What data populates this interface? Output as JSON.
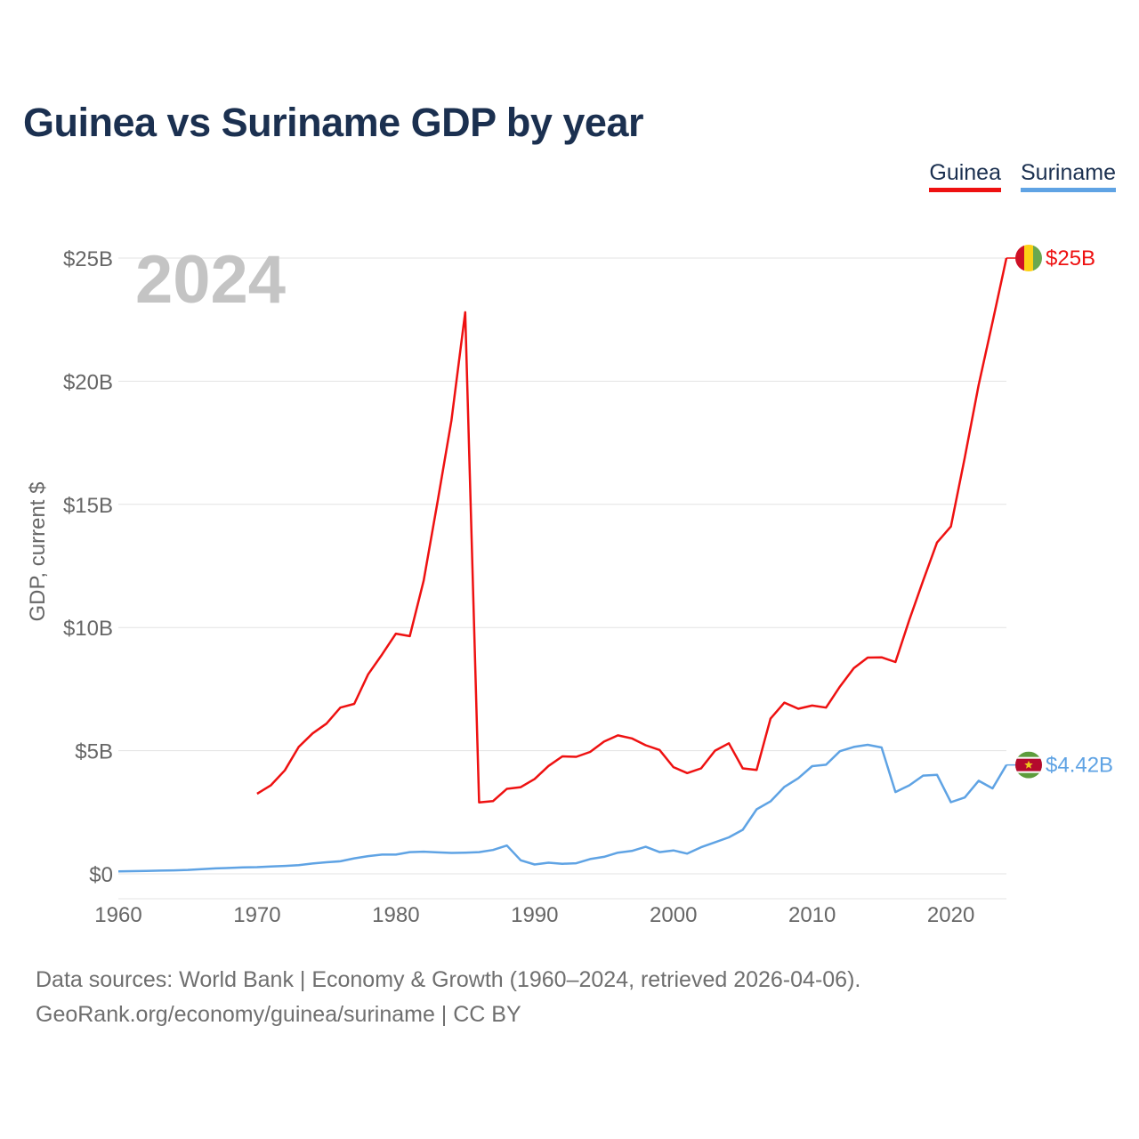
{
  "page": {
    "title": "Guinea vs Suriname GDP by year",
    "footer_line1": "Data sources: World Bank | Economy & Growth (1960–2024, retrieved 2026-04-06).",
    "footer_line2": "GeoRank.org/economy/guinea/suriname | CC BY"
  },
  "chart_data": {
    "type": "line",
    "title": "Guinea vs Suriname GDP by year",
    "ylabel": "GDP, current $",
    "xlabel": "",
    "year_label": "2024",
    "x_ticks": [
      1960,
      1970,
      1980,
      1990,
      2000,
      2010,
      2020
    ],
    "x_tick_labels": [
      "1960",
      "1970",
      "1980",
      "1990",
      "2000",
      "2010",
      "2020"
    ],
    "xlim": [
      1960,
      2024
    ],
    "y_ticks": [
      0,
      5,
      10,
      15,
      20,
      25
    ],
    "y_tick_labels": [
      "$0",
      "$5B",
      "$10B",
      "$15B",
      "$20B",
      "$25B"
    ],
    "ylim": [
      -1,
      25
    ],
    "units": "billions USD",
    "legend_position": "top-right",
    "series": [
      {
        "name": "Guinea",
        "color": "#ee1111",
        "flag": "guinea-flag",
        "end_label": "$25B",
        "points": [
          [
            1970,
            3.25
          ],
          [
            1971,
            3.6
          ],
          [
            1972,
            4.2
          ],
          [
            1973,
            5.15
          ],
          [
            1974,
            5.7
          ],
          [
            1975,
            6.1
          ],
          [
            1976,
            6.75
          ],
          [
            1977,
            6.9
          ],
          [
            1978,
            8.1
          ],
          [
            1979,
            8.9
          ],
          [
            1980,
            9.75
          ],
          [
            1981,
            9.65
          ],
          [
            1982,
            11.9
          ],
          [
            1983,
            15.1
          ],
          [
            1984,
            18.4
          ],
          [
            1985,
            22.8
          ],
          [
            1986,
            2.9
          ],
          [
            1987,
            2.95
          ],
          [
            1988,
            3.45
          ],
          [
            1989,
            3.52
          ],
          [
            1990,
            3.85
          ],
          [
            1991,
            4.38
          ],
          [
            1992,
            4.77
          ],
          [
            1993,
            4.75
          ],
          [
            1994,
            4.95
          ],
          [
            1995,
            5.37
          ],
          [
            1996,
            5.62
          ],
          [
            1997,
            5.5
          ],
          [
            1998,
            5.22
          ],
          [
            1999,
            5.03
          ],
          [
            2000,
            4.33
          ],
          [
            2001,
            4.09
          ],
          [
            2002,
            4.28
          ],
          [
            2003,
            5.0
          ],
          [
            2004,
            5.3
          ],
          [
            2005,
            4.28
          ],
          [
            2006,
            4.22
          ],
          [
            2007,
            6.3
          ],
          [
            2008,
            6.95
          ],
          [
            2009,
            6.7
          ],
          [
            2010,
            6.83
          ],
          [
            2011,
            6.75
          ],
          [
            2012,
            7.6
          ],
          [
            2013,
            8.35
          ],
          [
            2014,
            8.78
          ],
          [
            2015,
            8.79
          ],
          [
            2016,
            8.6
          ],
          [
            2017,
            10.3
          ],
          [
            2018,
            11.9
          ],
          [
            2019,
            13.45
          ],
          [
            2020,
            14.1
          ],
          [
            2021,
            16.9
          ],
          [
            2022,
            19.85
          ],
          [
            2023,
            22.4
          ],
          [
            2024,
            25.0
          ]
        ]
      },
      {
        "name": "Suriname",
        "color": "#5fa3e4",
        "flag": "suriname-flag",
        "end_label": "$4.42B",
        "points": [
          [
            1960,
            0.1
          ],
          [
            1961,
            0.11
          ],
          [
            1962,
            0.12
          ],
          [
            1963,
            0.13
          ],
          [
            1964,
            0.14
          ],
          [
            1965,
            0.16
          ],
          [
            1966,
            0.19
          ],
          [
            1967,
            0.22
          ],
          [
            1968,
            0.24
          ],
          [
            1969,
            0.26
          ],
          [
            1970,
            0.27
          ],
          [
            1971,
            0.3
          ],
          [
            1972,
            0.32
          ],
          [
            1973,
            0.35
          ],
          [
            1974,
            0.42
          ],
          [
            1975,
            0.47
          ],
          [
            1976,
            0.51
          ],
          [
            1977,
            0.63
          ],
          [
            1978,
            0.72
          ],
          [
            1979,
            0.78
          ],
          [
            1980,
            0.78
          ],
          [
            1981,
            0.88
          ],
          [
            1982,
            0.9
          ],
          [
            1983,
            0.87
          ],
          [
            1984,
            0.85
          ],
          [
            1985,
            0.86
          ],
          [
            1986,
            0.88
          ],
          [
            1987,
            0.97
          ],
          [
            1988,
            1.15
          ],
          [
            1989,
            0.55
          ],
          [
            1990,
            0.38
          ],
          [
            1991,
            0.45
          ],
          [
            1992,
            0.41
          ],
          [
            1993,
            0.43
          ],
          [
            1994,
            0.6
          ],
          [
            1995,
            0.69
          ],
          [
            1996,
            0.86
          ],
          [
            1997,
            0.93
          ],
          [
            1998,
            1.1
          ],
          [
            1999,
            0.88
          ],
          [
            2000,
            0.95
          ],
          [
            2001,
            0.82
          ],
          [
            2002,
            1.08
          ],
          [
            2003,
            1.28
          ],
          [
            2004,
            1.48
          ],
          [
            2005,
            1.79
          ],
          [
            2006,
            2.62
          ],
          [
            2007,
            2.94
          ],
          [
            2008,
            3.53
          ],
          [
            2009,
            3.88
          ],
          [
            2010,
            4.37
          ],
          [
            2011,
            4.43
          ],
          [
            2012,
            4.98
          ],
          [
            2013,
            5.15
          ],
          [
            2014,
            5.24
          ],
          [
            2015,
            5.13
          ],
          [
            2016,
            3.32
          ],
          [
            2017,
            3.59
          ],
          [
            2018,
            3.99
          ],
          [
            2019,
            4.02
          ],
          [
            2020,
            2.91
          ],
          [
            2021,
            3.1
          ],
          [
            2022,
            3.78
          ],
          [
            2023,
            3.47
          ],
          [
            2024,
            4.42
          ]
        ]
      }
    ]
  }
}
